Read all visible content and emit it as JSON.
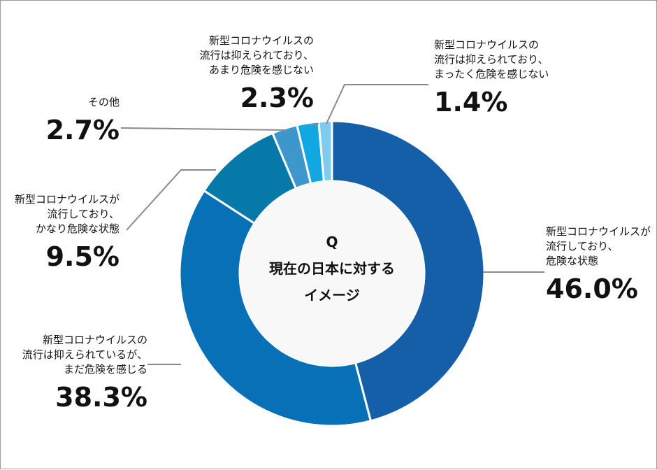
{
  "chart_data": {
    "type": "pie",
    "donut": true,
    "title": "Q\n現在の日本に対する\nイメージ",
    "slices": [
      {
        "label": "新型コロナウイルスが\n流行しており、\n危険な状態",
        "value": 46.0,
        "display": "46.0%",
        "color": "#155ea8"
      },
      {
        "label": "新型コロナウイルスの\n流行は抑えられているが、\nまだ危険を感じる",
        "value": 38.3,
        "display": "38.3%",
        "color": "#0770b6"
      },
      {
        "label": "新型コロナウイルスが\n流行しており、\nかなり危険な状態",
        "value": 9.5,
        "display": "9.5%",
        "color": "#0779a9"
      },
      {
        "label": "その他",
        "value": 2.7,
        "display": "2.7%",
        "color": "#3d96cc"
      },
      {
        "label": "新型コロナウイルスの\n流行は抑えられており、\nあまり危険を感じない",
        "value": 2.3,
        "display": "2.3%",
        "color": "#11a7e0"
      },
      {
        "label": "新型コロナウイルスの\n流行は抑えられており、\nまったく危険を感じない",
        "value": 1.4,
        "display": "1.4%",
        "color": "#7dcbee"
      }
    ]
  },
  "colors": {
    "center_fill": "#f7f8f7",
    "leader_line": "#8a8a8a",
    "frame_border": "#9a9a9a"
  }
}
